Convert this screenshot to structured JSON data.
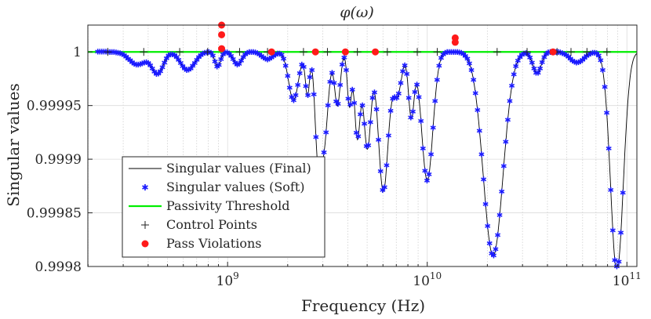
{
  "chart_data": {
    "type": "line",
    "title": "φ(ω)",
    "xlabel": "Frequency (Hz)",
    "ylabel": "Singular values",
    "xscale": "log",
    "xlim_log10": [
      8.3,
      11.05
    ],
    "ylim": [
      0.9998,
      1.000025
    ],
    "grid": true,
    "x_major_ticks": [
      {
        "base": "10",
        "exp": "9",
        "log10": 9
      },
      {
        "base": "10",
        "exp": "10",
        "log10": 10
      },
      {
        "base": "10",
        "exp": "11",
        "log10": 11
      }
    ],
    "y_ticks": [
      {
        "label": "1",
        "value": 1.0
      },
      {
        "label": "0.99995",
        "value": 0.99995
      },
      {
        "label": "0.9999",
        "value": 0.9999
      },
      {
        "label": "0.99985",
        "value": 0.99985
      },
      {
        "label": "0.9998",
        "value": 0.9998
      }
    ],
    "legend_position": "lower-left",
    "legend": [
      {
        "label": "Singular values (Final)",
        "style": "black-line"
      },
      {
        "label": "Singular values (Soft)",
        "style": "blue-star"
      },
      {
        "label": "Passivity Threshold",
        "style": "green-line"
      },
      {
        "label": "Control Points",
        "style": "black-plus"
      },
      {
        "label": "Pass Violations",
        "style": "red-dot"
      }
    ],
    "colors": {
      "final": "#000000",
      "soft": "#1a1aff",
      "threshold": "#00ee00",
      "control": "#222222",
      "violation": "#ff1a1a"
    },
    "threshold_value": 1.0,
    "dip_series": {
      "name": "Singular values (Final / Soft)",
      "dips": [
        {
          "log10_f": 8.55,
          "min": 0.999988,
          "width": 0.06
        },
        {
          "log10_f": 8.65,
          "min": 0.99998,
          "width": 0.04
        },
        {
          "log10_f": 8.8,
          "min": 0.999983,
          "width": 0.05
        },
        {
          "log10_f": 8.95,
          "min": 0.999986,
          "width": 0.02
        },
        {
          "log10_f": 9.05,
          "min": 0.999988,
          "width": 0.03
        },
        {
          "log10_f": 9.2,
          "min": 0.999993,
          "width": 0.04
        },
        {
          "log10_f": 9.33,
          "min": 0.999955,
          "width": 0.035
        },
        {
          "log10_f": 9.4,
          "min": 0.99996,
          "width": 0.015
        },
        {
          "log10_f": 9.45,
          "min": 0.99993,
          "width": 0.02
        },
        {
          "log10_f": 9.48,
          "min": 0.99991,
          "width": 0.03
        },
        {
          "log10_f": 9.55,
          "min": 0.99995,
          "width": 0.02
        },
        {
          "log10_f": 9.61,
          "min": 0.99995,
          "width": 0.015
        },
        {
          "log10_f": 9.65,
          "min": 0.99992,
          "width": 0.02
        },
        {
          "log10_f": 9.7,
          "min": 0.99991,
          "width": 0.025
        },
        {
          "log10_f": 9.78,
          "min": 0.99987,
          "width": 0.035
        },
        {
          "log10_f": 9.85,
          "min": 0.99996,
          "width": 0.03
        },
        {
          "log10_f": 9.92,
          "min": 0.99994,
          "width": 0.02
        },
        {
          "log10_f": 10.0,
          "min": 0.99988,
          "width": 0.04
        },
        {
          "log10_f": 10.33,
          "min": 0.99981,
          "width": 0.07
        },
        {
          "log10_f": 10.55,
          "min": 0.99998,
          "width": 0.03
        },
        {
          "log10_f": 10.75,
          "min": 0.99999,
          "width": 0.05
        },
        {
          "log10_f": 10.95,
          "min": 0.999795,
          "width": 0.045
        }
      ]
    },
    "control_points_log10": [
      8.4,
      8.58,
      8.76,
      8.9,
      9.06,
      9.2,
      9.38,
      9.5,
      9.65,
      9.8,
      9.95,
      10.05,
      10.35,
      10.5,
      10.65,
      10.72,
      10.8,
      10.9
    ],
    "violations": [
      {
        "log10_f": 8.97,
        "value": 1.000025
      },
      {
        "log10_f": 8.97,
        "value": 1.000016
      },
      {
        "log10_f": 8.97,
        "value": 1.000003
      },
      {
        "log10_f": 9.22,
        "value": 1.0
      },
      {
        "log10_f": 9.44,
        "value": 1.0
      },
      {
        "log10_f": 9.59,
        "value": 1.0
      },
      {
        "log10_f": 9.74,
        "value": 1.0
      },
      {
        "log10_f": 10.14,
        "value": 1.000013
      },
      {
        "log10_f": 10.14,
        "value": 1.000009
      },
      {
        "log10_f": 10.63,
        "value": 1.0
      }
    ]
  }
}
